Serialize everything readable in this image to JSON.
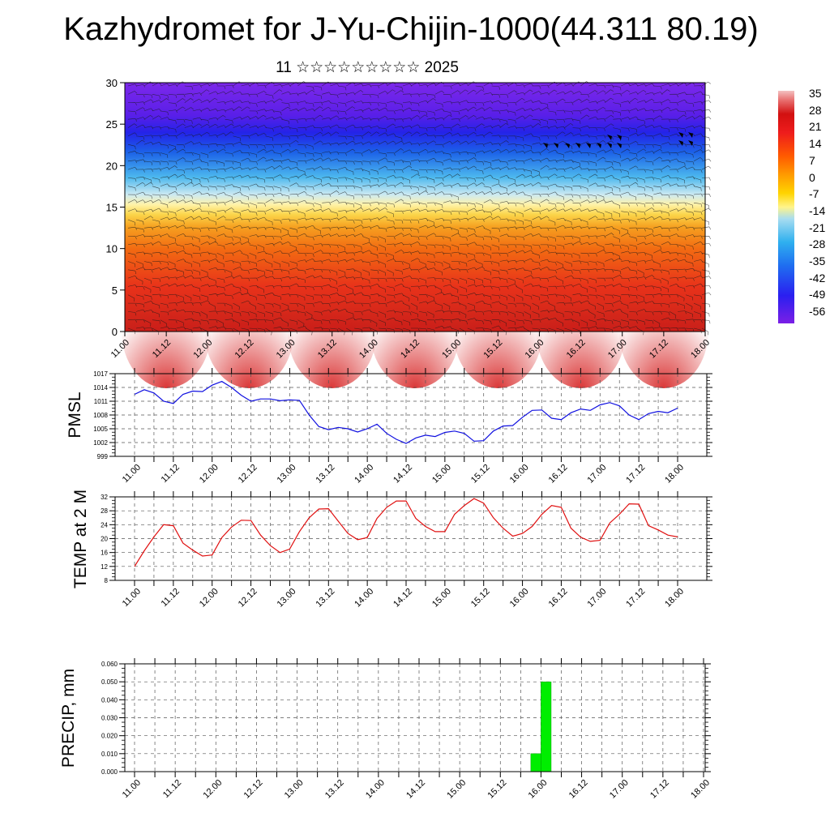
{
  "title": "Kazhydromet for J-Yu-Chijin-1000(44.311 80.19)",
  "subtitle": "11 ☆☆☆☆☆☆☆☆☆ 2025",
  "colors": {
    "pmsl_line": "#1010e0",
    "temp_line": "#e01010",
    "precip_bar": "#00ee00",
    "colorbar": [
      "#7b1fe6",
      "#2a1ff0",
      "#1f6ff0",
      "#2fb0ef",
      "#a8ddf0",
      "#fff48a",
      "#ffd400",
      "#ff9a00",
      "#ff5a00",
      "#ee1c1c",
      "#d21010",
      "#e87070",
      "#f4c0c0"
    ]
  },
  "chart_data": [
    {
      "type": "heatmap",
      "title": "",
      "ylim": [
        0,
        30
      ],
      "yticks": [
        "0",
        "5",
        "10",
        "15",
        "20",
        "25",
        "30"
      ],
      "xticks": [
        "11.00",
        "11.12",
        "12.00",
        "12.12",
        "13.00",
        "13.12",
        "14.00",
        "14.12",
        "15.00",
        "15.12",
        "16.00",
        "16.12",
        "17.00",
        "17.12",
        "18.00"
      ],
      "colorbar_labels": [
        "35",
        "28",
        "21",
        "14",
        "7",
        "0",
        "-7",
        "-14",
        "-21",
        "-28",
        "-35",
        "-42",
        "-49",
        "-56"
      ],
      "overlay": "wind barbs",
      "grid": false
    },
    {
      "type": "line",
      "ylabel": "PMSL",
      "ylim": [
        999,
        1017
      ],
      "yticks": [
        "999",
        "1002",
        "1005",
        "1008",
        "1011",
        "1014",
        "1017"
      ],
      "xticks": [
        "11.00",
        "11.12",
        "12.00",
        "12.12",
        "13.00",
        "13.12",
        "14.00",
        "14.12",
        "15.00",
        "15.12",
        "16.00",
        "16.12",
        "17.00",
        "17.12",
        "18.00"
      ],
      "x_hours": [
        0,
        3,
        6,
        9,
        12,
        15,
        18,
        21,
        24,
        27,
        30,
        33,
        36,
        39,
        42,
        45,
        48,
        51,
        54,
        57,
        60,
        63,
        66,
        69,
        72,
        75,
        78,
        81,
        84,
        87,
        90,
        93,
        96,
        99,
        102,
        105,
        108,
        111,
        114,
        117,
        120,
        123,
        126,
        129,
        132,
        135,
        138,
        141,
        144,
        147,
        150,
        153,
        156,
        159,
        162,
        165,
        168
      ],
      "values": [
        1012.5,
        1013.5,
        1012.8,
        1011.0,
        1010.5,
        1012.5,
        1013.2,
        1013.1,
        1014.5,
        1015.3,
        1014.0,
        1012.3,
        1011.0,
        1011.5,
        1011.5,
        1011.1,
        1011.3,
        1011.2,
        1008.0,
        1005.5,
        1004.8,
        1005.3,
        1005.0,
        1004.3,
        1005.0,
        1006.0,
        1004.0,
        1002.7,
        1001.8,
        1003.0,
        1003.6,
        1003.3,
        1004.2,
        1004.5,
        1004.0,
        1002.3,
        1002.4,
        1004.5,
        1005.6,
        1005.7,
        1007.5,
        1009.0,
        1009.1,
        1007.3,
        1007.0,
        1008.5,
        1009.3,
        1009.0,
        1010.2,
        1010.7,
        1010.0,
        1008.0,
        1007.0,
        1008.3,
        1008.8,
        1008.5,
        1009.5
      ],
      "grid": true
    },
    {
      "type": "line",
      "ylabel": "TEMP at 2 M",
      "ylim": [
        8,
        32
      ],
      "yticks": [
        "8",
        "12",
        "16",
        "20",
        "24",
        "28",
        "32"
      ],
      "xticks": [
        "11.00",
        "11.12",
        "12.00",
        "12.12",
        "13.00",
        "13.12",
        "14.00",
        "14.12",
        "15.00",
        "15.12",
        "16.00",
        "16.12",
        "17.00",
        "17.12",
        "18.00"
      ],
      "x_hours": [
        0,
        3,
        6,
        9,
        12,
        15,
        18,
        21,
        24,
        27,
        30,
        33,
        36,
        39,
        42,
        45,
        48,
        51,
        54,
        57,
        60,
        63,
        66,
        69,
        72,
        75,
        78,
        81,
        84,
        87,
        90,
        93,
        96,
        99,
        102,
        105,
        108,
        111,
        114,
        117,
        120,
        123,
        126,
        129,
        132,
        135,
        138,
        141,
        144,
        147,
        150,
        153,
        156,
        159,
        162,
        165,
        168
      ],
      "values": [
        12.0,
        16.5,
        20.5,
        24.0,
        23.7,
        18.7,
        16.7,
        15.0,
        15.3,
        20.3,
        23.3,
        25.3,
        25.2,
        21.0,
        18.0,
        16.0,
        17.0,
        22.0,
        26.0,
        28.5,
        28.6,
        25.0,
        21.5,
        19.7,
        20.3,
        25.8,
        29.0,
        30.8,
        30.8,
        25.8,
        23.5,
        22.0,
        22.0,
        27.0,
        29.5,
        31.5,
        30.2,
        26.0,
        23.0,
        20.7,
        21.5,
        23.5,
        27.0,
        29.5,
        29.0,
        23.0,
        20.4,
        19.2,
        19.5,
        24.5,
        27.0,
        30.0,
        29.9,
        23.7,
        22.5,
        21.0,
        20.5
      ],
      "grid": true
    },
    {
      "type": "bar",
      "ylabel": "PRECIP, mm",
      "ylim": [
        0,
        0.06
      ],
      "yticks": [
        "0.000",
        "0.010",
        "0.020",
        "0.030",
        "0.040",
        "0.050",
        "0.060"
      ],
      "xticks": [
        "11.00",
        "11.12",
        "12.00",
        "12.12",
        "13.00",
        "13.12",
        "14.00",
        "14.12",
        "15.00",
        "15.12",
        "16.00",
        "16.12",
        "17.00",
        "17.12",
        "18.00"
      ],
      "bars": [
        {
          "x_start_hours": 117,
          "x_end_hours": 120,
          "value": 0.01
        },
        {
          "x_start_hours": 120,
          "x_end_hours": 123,
          "value": 0.05
        }
      ],
      "grid": true
    }
  ]
}
